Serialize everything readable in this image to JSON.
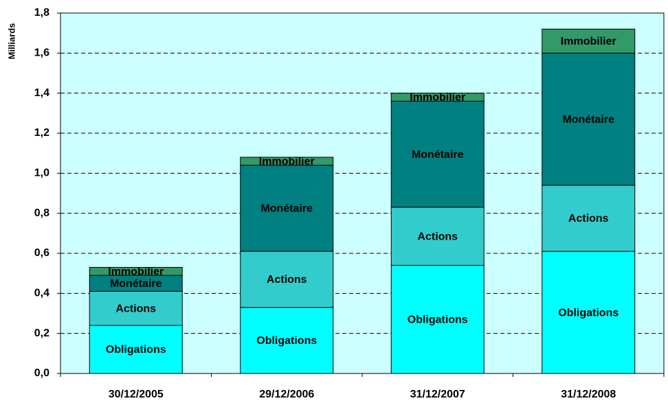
{
  "chart_data": {
    "type": "stacked_bar",
    "y_label": "Milliards",
    "categories": [
      "30/12/2005",
      "29/12/2006",
      "31/12/2007",
      "31/12/2008"
    ],
    "series": [
      {
        "name": "Obligations",
        "color": "#00ffff",
        "values": [
          0.24,
          0.33,
          0.54,
          0.61
        ]
      },
      {
        "name": "Actions",
        "color": "#33cccc",
        "values": [
          0.17,
          0.28,
          0.29,
          0.33
        ]
      },
      {
        "name": "Monétaire",
        "color": "#008080",
        "values": [
          0.08,
          0.43,
          0.53,
          0.66
        ]
      },
      {
        "name": "Immobilier",
        "color": "#339966",
        "values": [
          0.04,
          0.04,
          0.04,
          0.12
        ]
      }
    ],
    "ylim": [
      0,
      1.8
    ],
    "yticks": [
      {
        "value": 0,
        "label": "0,0"
      },
      {
        "value": 0.2,
        "label": "0,2"
      },
      {
        "value": 0.4,
        "label": "0,4"
      },
      {
        "value": 0.6,
        "label": "0,6"
      },
      {
        "value": 0.8,
        "label": "0,8"
      },
      {
        "value": 1.0,
        "label": "1,0"
      },
      {
        "value": 1.2,
        "label": "1,2"
      },
      {
        "value": 1.4,
        "label": "1,4"
      },
      {
        "value": 1.6,
        "label": "1,6"
      },
      {
        "value": 1.8,
        "label": "1,8"
      }
    ],
    "grid": true,
    "plot_background": "#ccffff"
  }
}
